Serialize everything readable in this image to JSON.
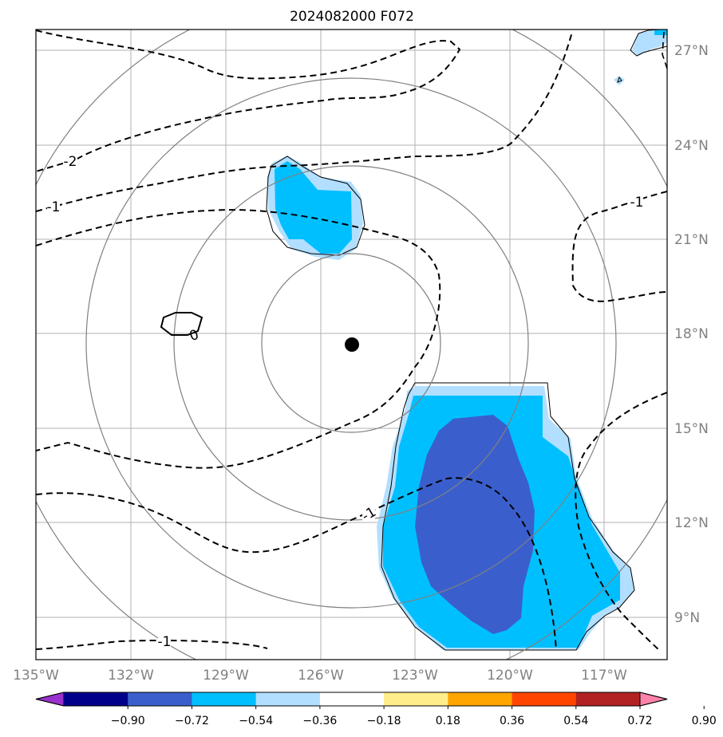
{
  "title": "2024082000 F072",
  "lon_ticks": [
    "135°W",
    "132°W",
    "129°W",
    "126°W",
    "123°W",
    "120°W",
    "117°W"
  ],
  "lat_ticks": [
    "27°N",
    "24°N",
    "21°N",
    "18°N",
    "15°N",
    "12°N",
    "9°N"
  ],
  "colorbar": {
    "labels": [
      "−0.90",
      "−0.72",
      "−0.54",
      "−0.36",
      "−0.18",
      "0.18",
      "0.36",
      "0.54",
      "0.72",
      "0.90"
    ],
    "colors": [
      "#9932CC",
      "#00008B",
      "#3A5FCD",
      "#00BFFF",
      "#B2DFFF",
      "#FFFFFF",
      "#FFEC8B",
      "#FFA500",
      "#FF4500",
      "#B22222",
      "#FF82AB"
    ]
  },
  "contour_labels": [
    "-2",
    "-1",
    "-1",
    "0",
    "-1",
    "-1"
  ],
  "storm_center": {
    "lon": -125.0,
    "lat": 17.7
  },
  "extent": {
    "lon": [
      -135,
      -115
    ],
    "lat": [
      8,
      27.7
    ]
  }
}
